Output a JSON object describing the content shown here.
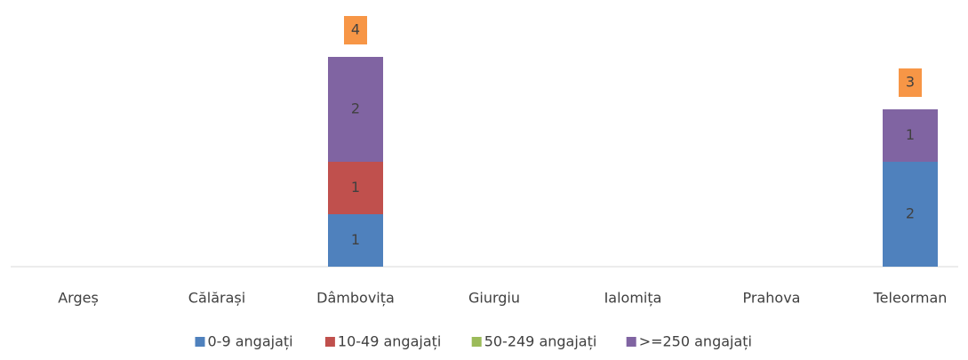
{
  "chart_data": {
    "type": "stacked_bar",
    "categories": [
      "Argeș",
      "Călărași",
      "Dâmbovița",
      "Giurgiu",
      "Ialomița",
      "Prahova",
      "Teleorman"
    ],
    "series": [
      {
        "name": "0-9 angajați",
        "color": "#4f81bd",
        "values": [
          null,
          null,
          1,
          null,
          null,
          null,
          2
        ]
      },
      {
        "name": "10-49 angajați",
        "color": "#c0504d",
        "values": [
          null,
          null,
          1,
          null,
          null,
          null,
          null
        ]
      },
      {
        "name": "50-249 angajați",
        "color": "#9bbb59",
        "values": [
          null,
          null,
          null,
          null,
          null,
          null,
          null
        ]
      },
      {
        "name": ">=250 angajați",
        "color": "#8064a2",
        "values": [
          null,
          null,
          2,
          null,
          null,
          null,
          1
        ]
      }
    ],
    "total_labels": [
      null,
      null,
      4,
      null,
      null,
      null,
      3
    ],
    "total_label_color": "#f79646",
    "ylim": [
      0,
      5
    ],
    "legend": "bottom"
  }
}
